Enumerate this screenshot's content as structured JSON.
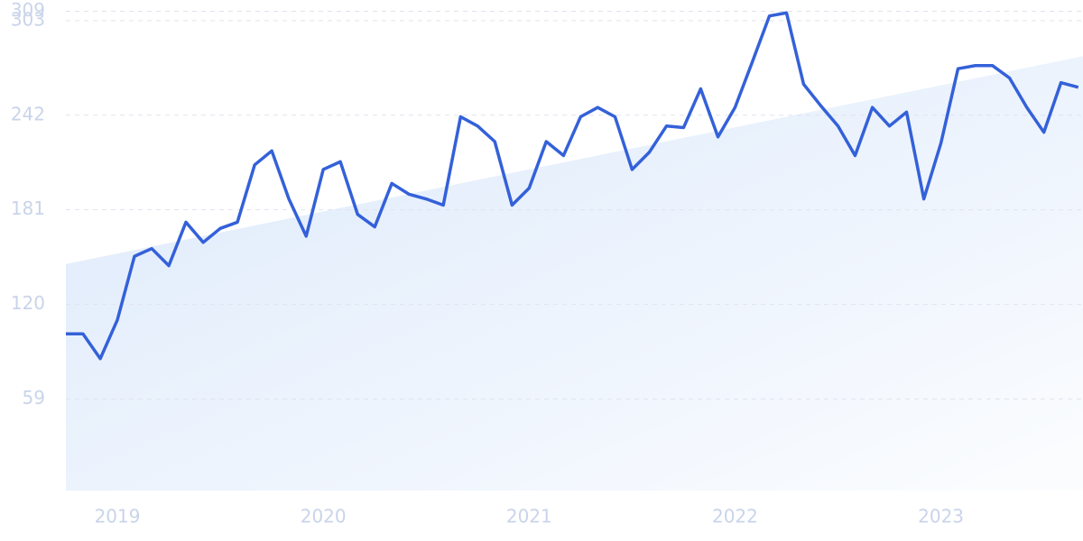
{
  "chart_data": {
    "type": "line",
    "x": [
      2018.75,
      2018.833,
      2018.917,
      2019,
      2019.083,
      2019.167,
      2019.25,
      2019.333,
      2019.417,
      2019.5,
      2019.583,
      2019.667,
      2019.75,
      2019.833,
      2019.917,
      2020,
      2020.083,
      2020.167,
      2020.25,
      2020.333,
      2020.417,
      2020.5,
      2020.583,
      2020.667,
      2020.75,
      2020.833,
      2020.917,
      2021,
      2021.083,
      2021.167,
      2021.25,
      2021.333,
      2021.417,
      2021.5,
      2021.583,
      2021.667,
      2021.75,
      2021.833,
      2021.917,
      2022,
      2022.083,
      2022.167,
      2022.25,
      2022.333,
      2022.417,
      2022.5,
      2022.583,
      2022.667,
      2022.75,
      2022.833,
      2022.917,
      2023,
      2023.083,
      2023.167,
      2023.25,
      2023.333,
      2023.417,
      2023.5,
      2023.583,
      2023.667
    ],
    "series": [
      {
        "color": "#3461d9",
        "values": [
          101,
          101,
          85,
          110,
          151,
          156,
          145,
          173,
          160,
          169,
          173,
          210,
          219,
          188,
          164,
          207,
          212,
          178,
          170,
          198,
          191,
          188,
          184,
          241,
          235,
          225,
          184,
          195,
          225,
          216,
          241,
          247,
          241,
          207,
          218,
          235,
          234,
          259,
          228,
          247,
          276,
          306,
          308,
          262,
          248,
          235,
          216,
          247,
          235,
          244,
          188,
          224,
          272,
          274,
          274,
          266,
          247,
          231,
          263,
          260
        ]
      }
    ],
    "trend": {
      "x": [
        2018.75,
        2023.69
      ],
      "values": [
        146,
        280
      ],
      "color": "#dce9fb"
    },
    "xlim": [
      2018.75,
      2023.69
    ],
    "xticks": [
      2019,
      2020,
      2021,
      2022,
      2023
    ],
    "ylim": [
      0,
      309
    ],
    "yticks": [
      59,
      120,
      181,
      242,
      303,
      309
    ],
    "grid": true
  }
}
